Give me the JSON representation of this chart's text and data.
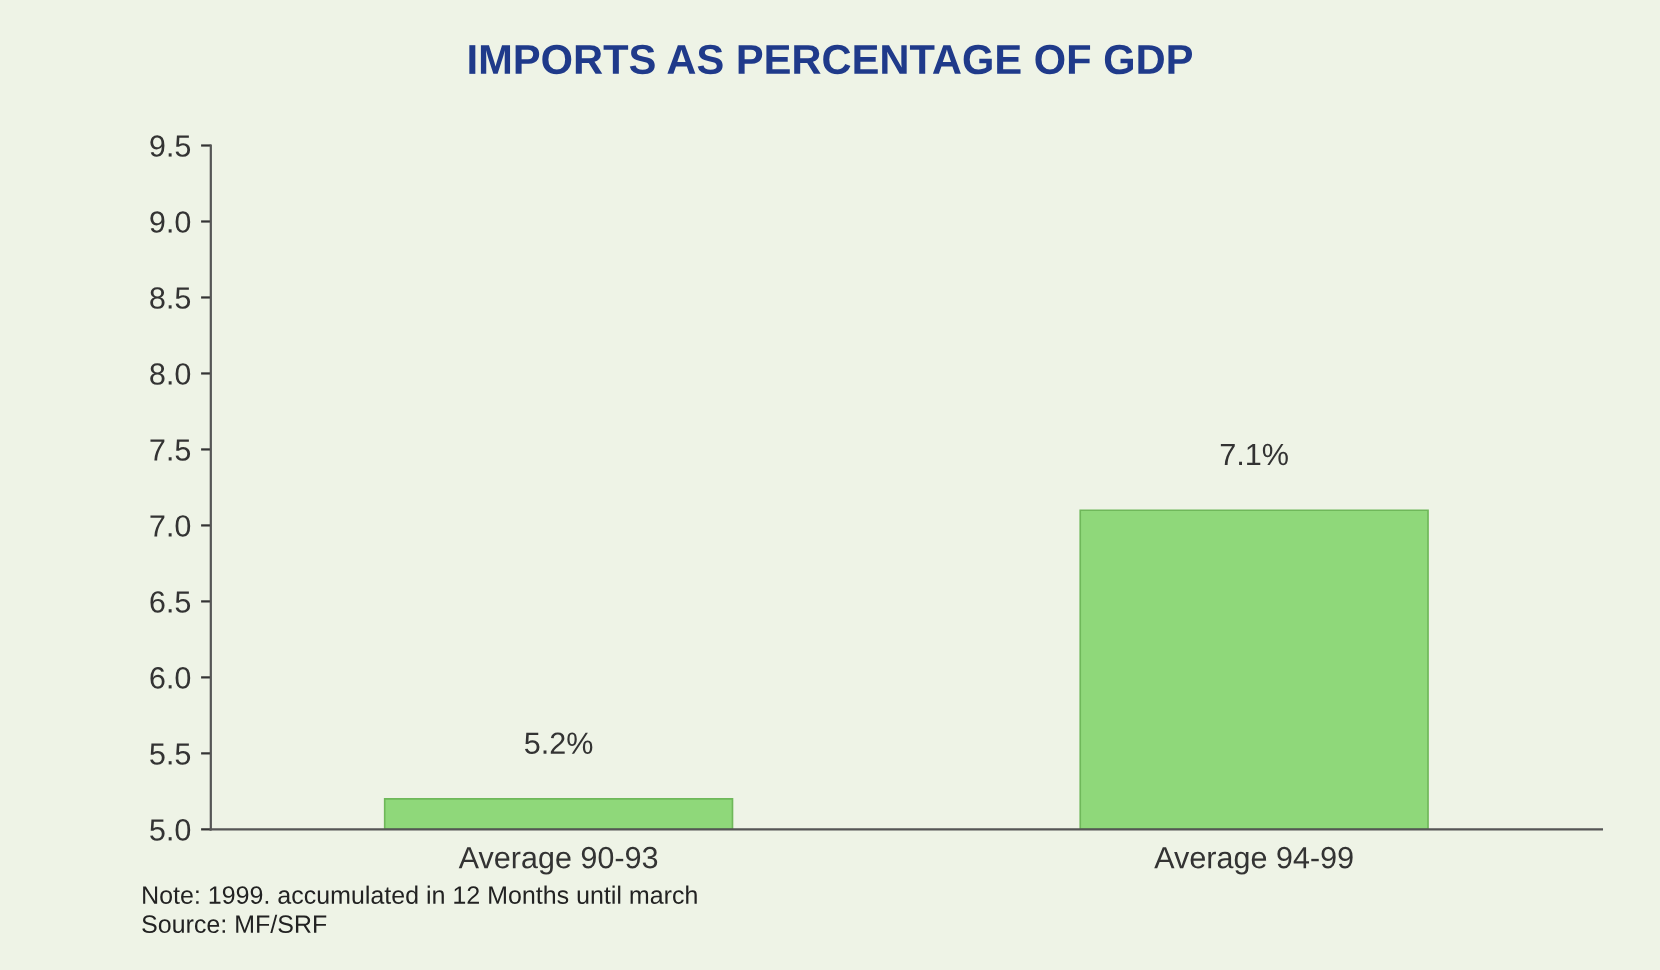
{
  "chart_data": {
    "type": "bar",
    "title": "IMPORTS AS PERCENTAGE OF GDP",
    "categories": [
      "Average 90-93",
      "Average 94-99"
    ],
    "values": [
      5.2,
      7.1
    ],
    "value_labels": [
      "5.2%",
      "7.1%"
    ],
    "color": "#8fd87a",
    "ylim": [
      5.0,
      9.5
    ],
    "yticks": [
      {
        "value": 5.0,
        "label": "5.0"
      },
      {
        "value": 5.5,
        "label": "5.5"
      },
      {
        "value": 6.0,
        "label": "6.0"
      },
      {
        "value": 6.5,
        "label": "6.5"
      },
      {
        "value": 7.0,
        "label": "7.0"
      },
      {
        "value": 7.5,
        "label": "7.5"
      },
      {
        "value": 8.0,
        "label": "8.0"
      },
      {
        "value": 8.5,
        "label": "8.5"
      },
      {
        "value": 9.0,
        "label": "9.0"
      },
      {
        "value": 9.5,
        "label": "9.5"
      }
    ],
    "grid": false,
    "legend": false,
    "annotations": [
      "Note: 1999. accumulated in 12 Months until march",
      "Source: MF/SRF"
    ]
  }
}
